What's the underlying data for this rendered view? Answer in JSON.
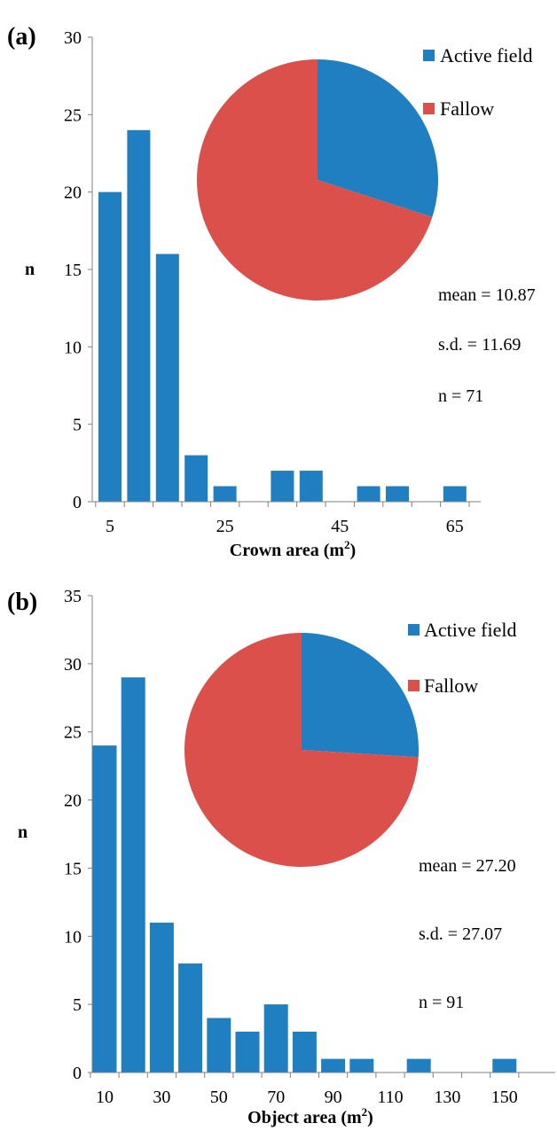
{
  "chart_data": [
    {
      "panel_label": "(a)",
      "type": "bar",
      "bins_x": [
        5,
        10,
        15,
        20,
        25,
        30,
        35,
        40,
        45,
        50,
        55,
        60,
        65
      ],
      "values": [
        20,
        24,
        16,
        3,
        1,
        0,
        2,
        2,
        0,
        1,
        1,
        0,
        1
      ],
      "x_tick_labels": [
        "5",
        "25",
        "45",
        "65"
      ],
      "y_ticks": [
        "0",
        "5",
        "10",
        "15",
        "20",
        "25",
        "30"
      ],
      "ylim": [
        0,
        30
      ],
      "xlabel": "Crown area (m",
      "xlabel_sup": "2",
      "xlabel_end": ")",
      "ylabel": "n",
      "grid": false,
      "bar_color": "#1f7fc1",
      "pie": {
        "type": "pie",
        "slices": [
          {
            "label": "Active field",
            "value": 30,
            "color": "#1f7fc1"
          },
          {
            "label": "Fallow",
            "value": 70,
            "color": "#dc504c"
          }
        ]
      },
      "legend_position": "top-right",
      "stats": {
        "mean": "mean = 10.87",
        "sd": "s.d. = 11.69",
        "n": "n = 71"
      }
    },
    {
      "panel_label": "(b)",
      "type": "bar",
      "bins_x": [
        10,
        20,
        30,
        40,
        50,
        60,
        70,
        80,
        90,
        100,
        110,
        120,
        130,
        140,
        150
      ],
      "values": [
        24,
        29,
        11,
        8,
        4,
        3,
        5,
        3,
        1,
        1,
        0,
        1,
        0,
        0,
        1
      ],
      "x_tick_labels": [
        "10",
        "30",
        "50",
        "70",
        "90",
        "110",
        "130",
        "150"
      ],
      "y_ticks": [
        "0",
        "5",
        "10",
        "15",
        "20",
        "25",
        "30",
        "35"
      ],
      "ylim": [
        0,
        35
      ],
      "xlabel": "Object area (m",
      "xlabel_sup": "2",
      "xlabel_end": ")",
      "ylabel": "n",
      "grid": false,
      "bar_color": "#1f7fc1",
      "pie": {
        "type": "pie",
        "slices": [
          {
            "label": "Active field",
            "value": 26,
            "color": "#1f7fc1"
          },
          {
            "label": "Fallow",
            "value": 74,
            "color": "#dc504c"
          }
        ]
      },
      "legend_position": "top-right",
      "stats": {
        "mean": "mean = 27.20",
        "sd": "s.d. = 27.07",
        "n": "n = 91"
      }
    }
  ]
}
